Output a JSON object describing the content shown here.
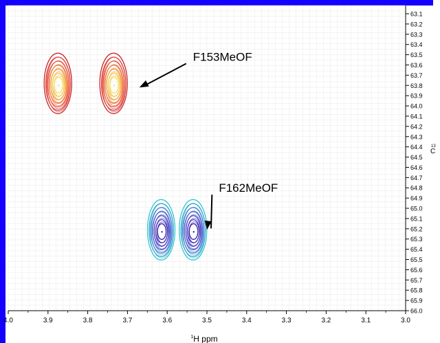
{
  "chart_data": {
    "type": "contour",
    "xlabel_sup": "1",
    "xlabel": "H ppm",
    "ylabel_sup": "13",
    "ylabel_tail": "C",
    "xlim": [
      4.0,
      3.0
    ],
    "ylim": [
      63.1,
      66.0
    ],
    "x_ticks": [
      "4.0",
      "3.9",
      "3.8",
      "3.7",
      "3.6",
      "3.5",
      "3.4",
      "3.3",
      "3.2",
      "3.1",
      "3.0"
    ],
    "y_ticks": [
      "63.1",
      "63.2",
      "63.3",
      "63.4",
      "63.5",
      "63.6",
      "63.7",
      "63.8",
      "63.9",
      "64.0",
      "64.1",
      "64.2",
      "64.3",
      "64.4",
      "64.5",
      "64.6",
      "64.7",
      "64.8",
      "64.9",
      "65.0",
      "65.1",
      "65.2",
      "65.3",
      "65.4",
      "65.5",
      "65.6",
      "65.7",
      "65.8",
      "65.9",
      "66.0"
    ],
    "grid": true,
    "peaks": [
      {
        "x": 3.875,
        "y": 63.78,
        "group": 0
      },
      {
        "x": 3.735,
        "y": 63.78,
        "group": 0
      },
      {
        "x": 3.615,
        "y": 65.21,
        "group": 1
      },
      {
        "x": 3.535,
        "y": 65.21,
        "group": 1
      }
    ],
    "groups": [
      {
        "colors": [
          "#cc2424",
          "#e03d3d",
          "#e85a3a",
          "#f07d3a",
          "#f4a23e",
          "#f5c744",
          "#f2df5b"
        ]
      },
      {
        "colors": [
          "#31c8d0",
          "#3aa3cf",
          "#4a7fd2",
          "#4c5dd0",
          "#4a3fc4",
          "#3f2bb8",
          "#341da6"
        ]
      }
    ],
    "annotations": [
      {
        "text": "F153MeOF",
        "x": 3.535,
        "y": 63.56,
        "arrow_to": [
          3.67,
          63.82
        ]
      },
      {
        "text": "F162MeOF",
        "x": 3.47,
        "y": 64.84,
        "arrow_to": [
          3.5,
          65.21
        ]
      }
    ]
  }
}
